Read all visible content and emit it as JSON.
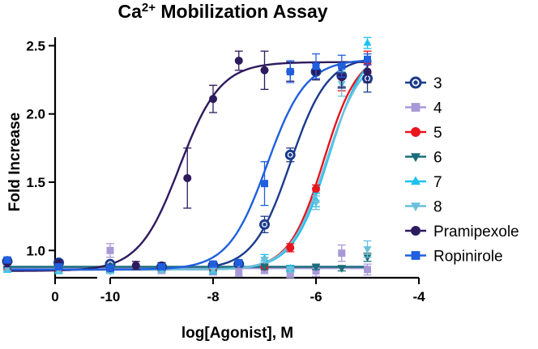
{
  "chart_data": {
    "type": "scatter",
    "title_main": "Ca",
    "title_sup": "2+",
    "title_rest": " Mobilization Assay",
    "xlabel": "log[Agonist], M",
    "ylabel": "Fold Increase",
    "xlim": [
      -12,
      -4
    ],
    "ylim": [
      0.8,
      2.55
    ],
    "x_ticks": [
      -10,
      -8,
      -6,
      -4
    ],
    "x_tick_labels": [
      "-10",
      "-8",
      "-6",
      "-4"
    ],
    "x_zero_label": "0",
    "y_ticks": [
      1.0,
      1.5,
      2.0,
      2.5
    ],
    "y_tick_labels": [
      "1.0",
      "1.5",
      "2.0",
      "2.5"
    ],
    "grid": false,
    "legend_position": "right",
    "series": [
      {
        "name": "3",
        "color": "#1a3a8c",
        "marker": "circle",
        "marker_style": "ring",
        "fit": {
          "bottom": 0.86,
          "top": 2.42,
          "logEC50": -6.5,
          "hill": 1.2
        },
        "points": [
          {
            "x": -12,
            "y": 0.92,
            "err": 0.02
          },
          {
            "x": -11,
            "y": 0.91,
            "err": 0.02
          },
          {
            "x": -10,
            "y": 0.9,
            "err": 0.02
          },
          {
            "x": -9,
            "y": 0.88,
            "err": 0.02
          },
          {
            "x": -8,
            "y": 0.89,
            "err": 0.02
          },
          {
            "x": -7.5,
            "y": 0.9,
            "err": 0.02
          },
          {
            "x": -7,
            "y": 1.19,
            "err": 0.06
          },
          {
            "x": -6.5,
            "y": 1.7,
            "err": 0.05
          },
          {
            "x": -6,
            "y": 2.31,
            "err": 0.06
          },
          {
            "x": -5.5,
            "y": 2.28,
            "err": 0.08
          },
          {
            "x": -5,
            "y": 2.26,
            "err": 0.1
          }
        ]
      },
      {
        "name": "4",
        "color": "#a898d8",
        "marker": "square",
        "marker_style": "filled",
        "fit": {
          "bottom": 0.87,
          "top": 0.87,
          "logEC50": -7,
          "hill": 1
        },
        "points": [
          {
            "x": -12,
            "y": 0.91,
            "err": 0.03
          },
          {
            "x": -10,
            "y": 1.0,
            "err": 0.05
          },
          {
            "x": -9,
            "y": 0.86,
            "err": 0.03
          },
          {
            "x": -8,
            "y": 0.85,
            "err": 0.03
          },
          {
            "x": -7.5,
            "y": 0.84,
            "err": 0.03
          },
          {
            "x": -7,
            "y": 0.86,
            "err": 0.03
          },
          {
            "x": -6.5,
            "y": 0.83,
            "err": 0.03
          },
          {
            "x": -6,
            "y": 0.85,
            "err": 0.04
          },
          {
            "x": -5.5,
            "y": 0.98,
            "err": 0.06
          },
          {
            "x": -5,
            "y": 0.86,
            "err": 0.04
          }
        ]
      },
      {
        "name": "5",
        "color": "#e8141e",
        "marker": "circle",
        "marker_style": "filled",
        "fit": {
          "bottom": 0.86,
          "top": 2.46,
          "logEC50": -5.85,
          "hill": 1.3
        },
        "points": [
          {
            "x": -12,
            "y": 0.89,
            "err": 0.03
          },
          {
            "x": -11,
            "y": 0.86,
            "err": 0.02
          },
          {
            "x": -10,
            "y": 0.86,
            "err": 0.02
          },
          {
            "x": -9,
            "y": 0.87,
            "err": 0.02
          },
          {
            "x": -8,
            "y": 0.87,
            "err": 0.02
          },
          {
            "x": -7,
            "y": 0.88,
            "err": 0.02
          },
          {
            "x": -6.5,
            "y": 1.02,
            "err": 0.03
          },
          {
            "x": -6,
            "y": 1.45,
            "err": 0.03
          },
          {
            "x": -5.5,
            "y": 2.27,
            "err": 0.1
          },
          {
            "x": -5,
            "y": 2.38,
            "err": 0.08
          }
        ]
      },
      {
        "name": "6",
        "color": "#1a6e7a",
        "marker": "triangle-down",
        "marker_style": "filled",
        "fit": {
          "bottom": 0.88,
          "top": 0.88,
          "logEC50": -7,
          "hill": 1
        },
        "points": [
          {
            "x": -12,
            "y": 0.89,
            "err": 0.02
          },
          {
            "x": -11,
            "y": 0.88,
            "err": 0.02
          },
          {
            "x": -10,
            "y": 0.88,
            "err": 0.02
          },
          {
            "x": -9,
            "y": 0.89,
            "err": 0.02
          },
          {
            "x": -8,
            "y": 0.87,
            "err": 0.02
          },
          {
            "x": -7,
            "y": 0.88,
            "err": 0.02
          },
          {
            "x": -6.5,
            "y": 0.87,
            "err": 0.02
          },
          {
            "x": -6,
            "y": 0.88,
            "err": 0.02
          },
          {
            "x": -5.5,
            "y": 0.87,
            "err": 0.02
          },
          {
            "x": -5,
            "y": 0.95,
            "err": 0.03
          }
        ]
      },
      {
        "name": "7",
        "color": "#1ec0f0",
        "marker": "triangle-up",
        "marker_style": "filled",
        "fit": {
          "bottom": 0.86,
          "top": 2.52,
          "logEC50": -5.75,
          "hill": 1.25
        },
        "points": [
          {
            "x": -12,
            "y": 0.86,
            "err": 0.02
          },
          {
            "x": -11,
            "y": 0.85,
            "err": 0.02
          },
          {
            "x": -10,
            "y": 0.86,
            "err": 0.02
          },
          {
            "x": -9,
            "y": 0.86,
            "err": 0.02
          },
          {
            "x": -8,
            "y": 0.85,
            "err": 0.02
          },
          {
            "x": -7,
            "y": 0.94,
            "err": 0.03
          },
          {
            "x": -6.5,
            "y": 0.87,
            "err": 0.02
          },
          {
            "x": -6,
            "y": 1.37,
            "err": 0.05
          },
          {
            "x": -5.5,
            "y": 2.28,
            "err": 0.09
          },
          {
            "x": -5,
            "y": 2.52,
            "err": 0.04
          }
        ]
      },
      {
        "name": "8",
        "color": "#6ac0dc",
        "marker": "triangle-down",
        "marker_style": "filled",
        "fit": {
          "bottom": 0.86,
          "top": 2.45,
          "logEC50": -5.8,
          "hill": 1.25
        },
        "points": [
          {
            "x": -12,
            "y": 0.87,
            "err": 0.02
          },
          {
            "x": -11,
            "y": 0.86,
            "err": 0.02
          },
          {
            "x": -10,
            "y": 0.85,
            "err": 0.02
          },
          {
            "x": -9,
            "y": 0.86,
            "err": 0.02
          },
          {
            "x": -8,
            "y": 0.86,
            "err": 0.02
          },
          {
            "x": -7,
            "y": 0.93,
            "err": 0.02
          },
          {
            "x": -6.5,
            "y": 0.86,
            "err": 0.02
          },
          {
            "x": -6,
            "y": 1.35,
            "err": 0.05
          },
          {
            "x": -5.5,
            "y": 2.22,
            "err": 0.09
          },
          {
            "x": -5,
            "y": 1.01,
            "err": 0.06
          }
        ]
      },
      {
        "name": "Pramipexole",
        "color": "#2e1a5e",
        "marker": "circle",
        "marker_style": "filled",
        "fit": {
          "bottom": 0.85,
          "top": 2.38,
          "logEC50": -8.65,
          "hill": 1.1
        },
        "points": [
          {
            "x": -12,
            "y": 0.91,
            "err": 0.03
          },
          {
            "x": -11,
            "y": 0.9,
            "err": 0.03
          },
          {
            "x": -10,
            "y": 0.87,
            "err": 0.02
          },
          {
            "x": -9.5,
            "y": 0.89,
            "err": 0.03
          },
          {
            "x": -9,
            "y": 0.89,
            "err": 0.02
          },
          {
            "x": -8.5,
            "y": 1.53,
            "err": 0.22
          },
          {
            "x": -8,
            "y": 2.11,
            "err": 0.1
          },
          {
            "x": -7.5,
            "y": 2.39,
            "err": 0.07
          },
          {
            "x": -7,
            "y": 2.32,
            "err": 0.14
          },
          {
            "x": -6.5,
            "y": 2.31,
            "err": 0.07
          },
          {
            "x": -6,
            "y": 2.31,
            "err": 0.06
          },
          {
            "x": -5.5,
            "y": 2.27,
            "err": 0.08
          },
          {
            "x": -5,
            "y": 2.31,
            "err": 0.08
          }
        ]
      },
      {
        "name": "Ropinirole",
        "color": "#1f5fe0",
        "marker": "square",
        "marker_style": "filled",
        "fit": {
          "bottom": 0.86,
          "top": 2.4,
          "logEC50": -6.95,
          "hill": 1.15
        },
        "points": [
          {
            "x": -12,
            "y": 0.93,
            "err": 0.02
          },
          {
            "x": -11,
            "y": 0.88,
            "err": 0.02
          },
          {
            "x": -10,
            "y": 0.87,
            "err": 0.02
          },
          {
            "x": -9,
            "y": 0.88,
            "err": 0.02
          },
          {
            "x": -8,
            "y": 0.9,
            "err": 0.02
          },
          {
            "x": -7.5,
            "y": 0.91,
            "err": 0.02
          },
          {
            "x": -7,
            "y": 1.49,
            "err": 0.16
          },
          {
            "x": -6.5,
            "y": 2.31,
            "err": 0.08
          },
          {
            "x": -6,
            "y": 2.35,
            "err": 0.09
          },
          {
            "x": -5.5,
            "y": 2.35,
            "err": 0.08
          },
          {
            "x": -5,
            "y": 2.4,
            "err": 0.04
          }
        ]
      }
    ]
  }
}
